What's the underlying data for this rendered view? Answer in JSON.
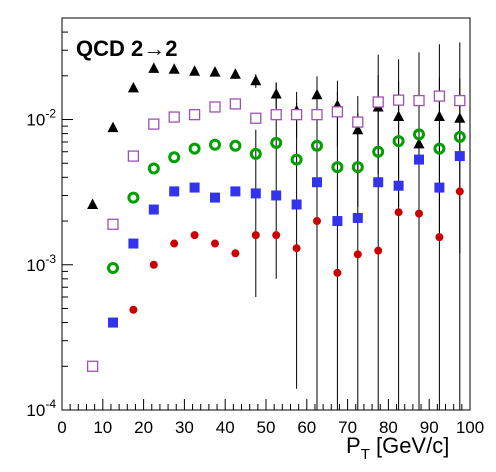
{
  "chart_data": {
    "type": "scatter",
    "title": "QCD 2→2",
    "xlabel": {
      "main": "P",
      "sub": "T",
      "unit": " [GeV/c]"
    },
    "ylabel": "",
    "xlim": [
      0,
      100
    ],
    "ylim": [
      0.0001,
      0.05
    ],
    "yscale": "log",
    "grid": false,
    "x_ticks": [
      0,
      10,
      20,
      30,
      40,
      50,
      60,
      70,
      80,
      90,
      100
    ],
    "y_ticks": [
      {
        "value": 0.0001,
        "base": "10",
        "exp": "-4"
      },
      {
        "value": 0.001,
        "base": "10",
        "exp": "-3"
      },
      {
        "value": 0.01,
        "base": "10",
        "exp": "-2"
      }
    ],
    "series": [
      {
        "marker": "filled-triangle",
        "color": "#000000",
        "points": [
          {
            "x": 7.5,
            "y": 0.0026,
            "err": 0.0001
          },
          {
            "x": 12.5,
            "y": 0.0088,
            "err": 0.0003
          },
          {
            "x": 17.5,
            "y": 0.0165,
            "err": 0.0005
          },
          {
            "x": 22.5,
            "y": 0.0225,
            "err": 0.0007
          },
          {
            "x": 27.5,
            "y": 0.0222,
            "err": 0.0008
          },
          {
            "x": 32.5,
            "y": 0.0215,
            "err": 0.001
          },
          {
            "x": 37.5,
            "y": 0.0212,
            "err": 0.001
          },
          {
            "x": 42.5,
            "y": 0.0205,
            "err": 0.0015
          },
          {
            "x": 47.5,
            "y": 0.0185,
            "err": 0.002
          },
          {
            "x": 52.5,
            "y": 0.015,
            "err": 0.003
          },
          {
            "x": 57.5,
            "y": 0.0115,
            "err": 0.004
          },
          {
            "x": 62.5,
            "y": 0.0148,
            "err": 0.005
          },
          {
            "x": 67.5,
            "y": 0.0125,
            "err": 0.006
          },
          {
            "x": 72.5,
            "y": 0.0085,
            "err": 0.006
          },
          {
            "x": 77.5,
            "y": 0.0122,
            "err": 0.008
          },
          {
            "x": 82.5,
            "y": 0.0105,
            "err": 0.008
          },
          {
            "x": 87.5,
            "y": 0.0068,
            "err": 0.006
          },
          {
            "x": 92.5,
            "y": 0.0105,
            "err": 0.009
          },
          {
            "x": 97.5,
            "y": 0.0102,
            "err": 0.009
          }
        ]
      },
      {
        "marker": "open-square",
        "color": "#a050b4",
        "points": [
          {
            "x": 7.5,
            "y": 0.0002
          },
          {
            "x": 12.5,
            "y": 0.0019
          },
          {
            "x": 17.5,
            "y": 0.0056
          },
          {
            "x": 22.5,
            "y": 0.0093
          },
          {
            "x": 27.5,
            "y": 0.0104
          },
          {
            "x": 32.5,
            "y": 0.0108
          },
          {
            "x": 37.5,
            "y": 0.0122
          },
          {
            "x": 42.5,
            "y": 0.0128
          },
          {
            "x": 47.5,
            "y": 0.0102
          },
          {
            "x": 52.5,
            "y": 0.0108
          },
          {
            "x": 57.5,
            "y": 0.0108
          },
          {
            "x": 62.5,
            "y": 0.0108
          },
          {
            "x": 67.5,
            "y": 0.0113
          },
          {
            "x": 72.5,
            "y": 0.0096
          },
          {
            "x": 77.5,
            "y": 0.0132
          },
          {
            "x": 82.5,
            "y": 0.0136
          },
          {
            "x": 87.5,
            "y": 0.0135
          },
          {
            "x": 92.5,
            "y": 0.0145
          },
          {
            "x": 97.5,
            "y": 0.0135
          }
        ]
      },
      {
        "marker": "open-circle",
        "color": "#00a000",
        "points": [
          {
            "x": 12.5,
            "y": 0.00095
          },
          {
            "x": 17.5,
            "y": 0.0029
          },
          {
            "x": 22.5,
            "y": 0.0046
          },
          {
            "x": 27.5,
            "y": 0.0055
          },
          {
            "x": 32.5,
            "y": 0.0063
          },
          {
            "x": 37.5,
            "y": 0.0067
          },
          {
            "x": 42.5,
            "y": 0.0066
          },
          {
            "x": 47.5,
            "y": 0.0058
          },
          {
            "x": 52.5,
            "y": 0.0069
          },
          {
            "x": 57.5,
            "y": 0.0053
          },
          {
            "x": 62.5,
            "y": 0.0066
          },
          {
            "x": 67.5,
            "y": 0.0047
          },
          {
            "x": 72.5,
            "y": 0.0047
          },
          {
            "x": 77.5,
            "y": 0.006
          },
          {
            "x": 82.5,
            "y": 0.0071
          },
          {
            "x": 87.5,
            "y": 0.0079
          },
          {
            "x": 92.5,
            "y": 0.0063
          },
          {
            "x": 97.5,
            "y": 0.0076
          }
        ]
      },
      {
        "marker": "filled-square",
        "color": "#3333ee",
        "points": [
          {
            "x": 12.5,
            "y": 0.0004
          },
          {
            "x": 17.5,
            "y": 0.0014
          },
          {
            "x": 22.5,
            "y": 0.0024
          },
          {
            "x": 27.5,
            "y": 0.0032
          },
          {
            "x": 32.5,
            "y": 0.0034
          },
          {
            "x": 37.5,
            "y": 0.0029
          },
          {
            "x": 42.5,
            "y": 0.0032
          },
          {
            "x": 47.5,
            "y": 0.0031
          },
          {
            "x": 52.5,
            "y": 0.003
          },
          {
            "x": 57.5,
            "y": 0.0026
          },
          {
            "x": 62.5,
            "y": 0.0037
          },
          {
            "x": 67.5,
            "y": 0.002
          },
          {
            "x": 72.5,
            "y": 0.0021
          },
          {
            "x": 77.5,
            "y": 0.0037
          },
          {
            "x": 82.5,
            "y": 0.0035
          },
          {
            "x": 87.5,
            "y": 0.0053
          },
          {
            "x": 92.5,
            "y": 0.0034
          },
          {
            "x": 97.5,
            "y": 0.0056
          }
        ]
      },
      {
        "marker": "filled-circle",
        "color": "#cc0000",
        "points": [
          {
            "x": 17.5,
            "y": 0.00049
          },
          {
            "x": 22.5,
            "y": 0.001
          },
          {
            "x": 27.5,
            "y": 0.0014
          },
          {
            "x": 32.5,
            "y": 0.0016
          },
          {
            "x": 37.5,
            "y": 0.0014
          },
          {
            "x": 42.5,
            "y": 0.0012
          },
          {
            "x": 47.5,
            "y": 0.0016
          },
          {
            "x": 52.5,
            "y": 0.0016
          },
          {
            "x": 57.5,
            "y": 0.0013
          },
          {
            "x": 62.5,
            "y": 0.002
          },
          {
            "x": 67.5,
            "y": 0.00088
          },
          {
            "x": 72.5,
            "y": 0.00118
          },
          {
            "x": 77.5,
            "y": 0.00125
          },
          {
            "x": 82.5,
            "y": 0.0023
          },
          {
            "x": 87.5,
            "y": 0.00225
          },
          {
            "x": 92.5,
            "y": 0.00155
          },
          {
            "x": 97.5,
            "y": 0.0032
          }
        ]
      }
    ],
    "error_bars": [
      {
        "x": 47.5,
        "low": 0.0006,
        "high": 0.0085
      },
      {
        "x": 52.5,
        "low": 0.0008,
        "high": 0.018
      },
      {
        "x": 57.5,
        "low": 0.00014,
        "high": 0.013
      },
      {
        "x": 62.5,
        "low": 0.0001,
        "high": 0.017
      },
      {
        "x": 67.5,
        "low": 0.0001,
        "high": 0.0155
      },
      {
        "x": 72.5,
        "low": 0.0001,
        "high": 0.011
      },
      {
        "x": 77.5,
        "low": 0.0001,
        "high": 0.028
      },
      {
        "x": 82.5,
        "low": 0.0001,
        "high": 0.026
      },
      {
        "x": 87.5,
        "low": 0.0001,
        "high": 0.029
      },
      {
        "x": 92.5,
        "low": 0.0001,
        "high": 0.033
      },
      {
        "x": 97.5,
        "low": 0.0001,
        "high": 0.034
      }
    ]
  }
}
